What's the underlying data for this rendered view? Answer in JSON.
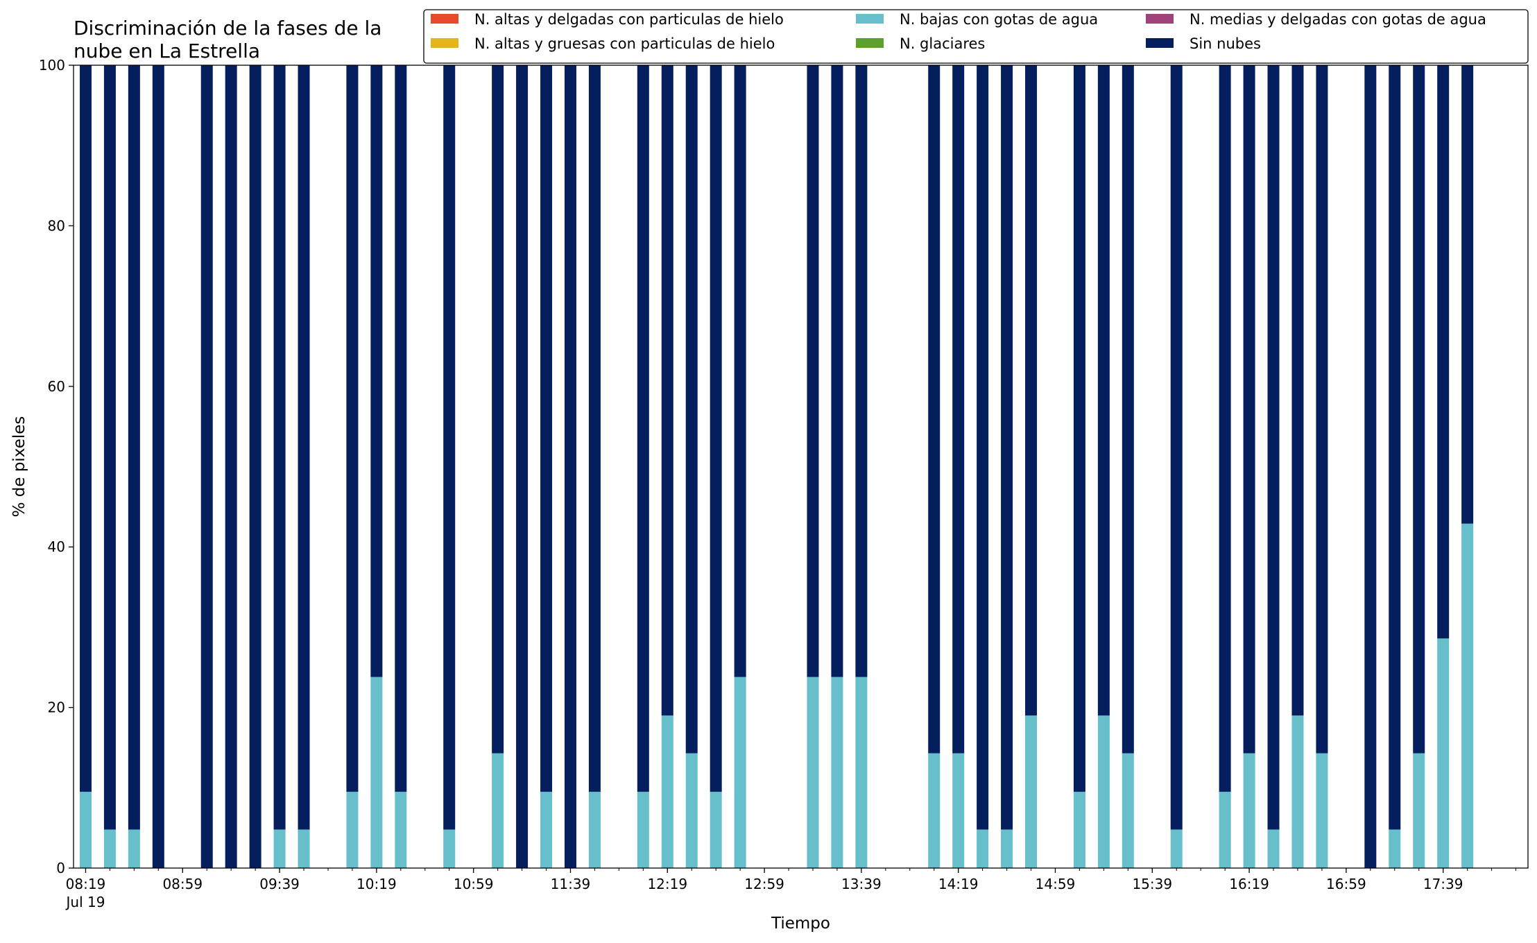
{
  "chart_data": {
    "type": "bar",
    "stacked": true,
    "title": "Discriminación de la fases de la\nnube en La Estrella",
    "xlabel": "Tiempo",
    "ylabel": "% de pixeles",
    "ylim": [
      0,
      100
    ],
    "yticks": [
      0,
      20,
      40,
      60,
      80,
      100
    ],
    "grid": false,
    "legend_position": "top-right",
    "x_start": "08:19",
    "x_end": "18:09",
    "x_interval_minutes": 10,
    "x_ticks": [
      "08:19",
      "08:59",
      "09:39",
      "10:19",
      "10:59",
      "11:39",
      "12:19",
      "12:59",
      "13:39",
      "14:19",
      "14:59",
      "15:39",
      "16:19",
      "16:59",
      "17:39"
    ],
    "x_tick_first_sublabel": "Jul 19",
    "x": [
      "08:19",
      "08:29",
      "08:39",
      "08:49",
      "09:09",
      "09:19",
      "09:29",
      "09:39",
      "09:49",
      "10:09",
      "10:19",
      "10:29",
      "10:49",
      "11:09",
      "11:19",
      "11:29",
      "11:39",
      "11:49",
      "12:09",
      "12:19",
      "12:29",
      "12:39",
      "12:49",
      "13:19",
      "13:29",
      "13:39",
      "14:09",
      "14:19",
      "14:29",
      "14:39",
      "14:49",
      "15:09",
      "15:19",
      "15:29",
      "15:49",
      "16:09",
      "16:19",
      "16:29",
      "16:39",
      "16:49",
      "17:09",
      "17:19",
      "17:29",
      "17:39",
      "17:49"
    ],
    "series": [
      {
        "name": "N. altas y delgadas con particulas de hielo",
        "color": "#e84a2c",
        "values": [
          0,
          0,
          0,
          0,
          0,
          0,
          0,
          0,
          0,
          0,
          0,
          0,
          0,
          0,
          0,
          0,
          0,
          0,
          0,
          0,
          0,
          0,
          0,
          0,
          0,
          0,
          0,
          0,
          0,
          0,
          0,
          0,
          0,
          0,
          0,
          0,
          0,
          0,
          0,
          0,
          0,
          0,
          0,
          0,
          0
        ]
      },
      {
        "name": "N. altas y gruesas con particulas de hielo",
        "color": "#e3b51b",
        "values": [
          0,
          0,
          0,
          0,
          0,
          0,
          0,
          0,
          0,
          0,
          0,
          0,
          0,
          0,
          0,
          0,
          0,
          0,
          0,
          0,
          0,
          0,
          0,
          0,
          0,
          0,
          0,
          0,
          0,
          0,
          0,
          0,
          0,
          0,
          0,
          0,
          0,
          0,
          0,
          0,
          0,
          0,
          0,
          0,
          0
        ]
      },
      {
        "name": "N. bajas con gotas de agua",
        "color": "#66bfcb",
        "values": [
          9.5,
          4.8,
          4.8,
          0,
          0,
          0,
          0,
          4.8,
          4.8,
          9.5,
          23.8,
          9.5,
          4.8,
          14.3,
          0,
          9.5,
          0,
          9.5,
          9.5,
          19,
          14.3,
          9.5,
          23.8,
          23.8,
          23.8,
          23.8,
          14.3,
          14.3,
          4.8,
          4.8,
          19,
          9.5,
          19,
          14.3,
          4.8,
          9.5,
          14.3,
          4.8,
          19,
          14.3,
          0,
          4.8,
          14.3,
          28.6,
          42.9
        ]
      },
      {
        "name": "N. glaciares",
        "color": "#5ea02e",
        "values": [
          0,
          0,
          0,
          0,
          0,
          0,
          0,
          0,
          0,
          0,
          0,
          0,
          0,
          0,
          0,
          0,
          0,
          0,
          0,
          0,
          0,
          0,
          0,
          0,
          0,
          0,
          0,
          0,
          0,
          0,
          0,
          0,
          0,
          0,
          0,
          0,
          0,
          0,
          0,
          0,
          0,
          0,
          0,
          0,
          0
        ]
      },
      {
        "name": "N. medias y delgadas con gotas de agua",
        "color": "#a1437a",
        "values": [
          0,
          0,
          0,
          0,
          0,
          0,
          0,
          0,
          0,
          0,
          0,
          0,
          0,
          0,
          0,
          0,
          0,
          0,
          0,
          0,
          0,
          0,
          0,
          0,
          0,
          0,
          0,
          0,
          0,
          0,
          0,
          0,
          0,
          0,
          0,
          0,
          0,
          0,
          0,
          0,
          0,
          0,
          0,
          0,
          0
        ]
      },
      {
        "name": "Sin nubes",
        "color": "#041e5e",
        "values": [
          90.5,
          95.2,
          95.2,
          100,
          100,
          100,
          100,
          95.2,
          95.2,
          90.5,
          76.2,
          90.5,
          95.2,
          85.7,
          100,
          90.5,
          100,
          90.5,
          90.5,
          81,
          85.7,
          90.5,
          76.2,
          76.2,
          76.2,
          76.2,
          85.7,
          85.7,
          95.2,
          95.2,
          81,
          90.5,
          81,
          85.7,
          95.2,
          90.5,
          85.7,
          95.2,
          81,
          85.7,
          100,
          95.2,
          85.7,
          71.4,
          57.1
        ]
      }
    ]
  }
}
